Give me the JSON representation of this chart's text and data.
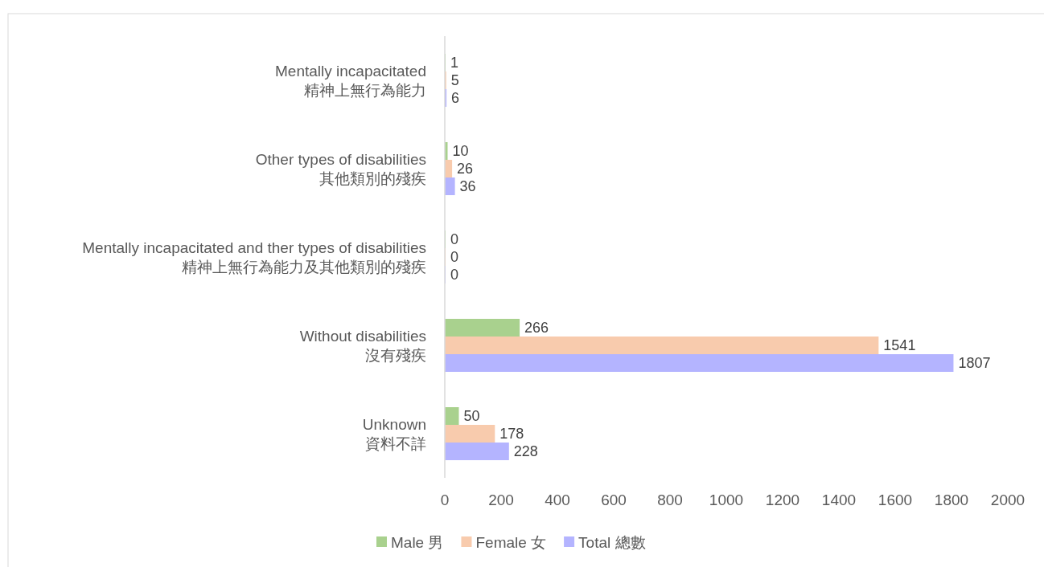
{
  "chart_data": {
    "type": "bar",
    "orientation": "horizontal",
    "categories": [
      "Mentally incapacitated\n精神上無行為能力",
      "Other types of disabilities\n其他類別的殘疾",
      "Mentally incapacitated and ther types of disabilities\n精神上無行為能力及其他類別的殘疾",
      "Without disabilities\n沒有殘疾",
      "Unknown\n資料不詳"
    ],
    "series": [
      {
        "name": "Male 男",
        "color": "#a9d18e",
        "values": [
          1,
          10,
          0,
          266,
          50
        ]
      },
      {
        "name": "Female 女",
        "color": "#f8cbad",
        "values": [
          5,
          26,
          0,
          1541,
          178
        ]
      },
      {
        "name": "Total 總數",
        "color": "#b4b4ff",
        "values": [
          6,
          36,
          0,
          1807,
          228
        ]
      }
    ],
    "xlim": [
      0,
      2000
    ],
    "xticks": [
      0,
      200,
      400,
      600,
      800,
      1000,
      1200,
      1400,
      1600,
      1800,
      2000
    ],
    "data_labels": true,
    "grid": false,
    "legend": "bottom"
  }
}
